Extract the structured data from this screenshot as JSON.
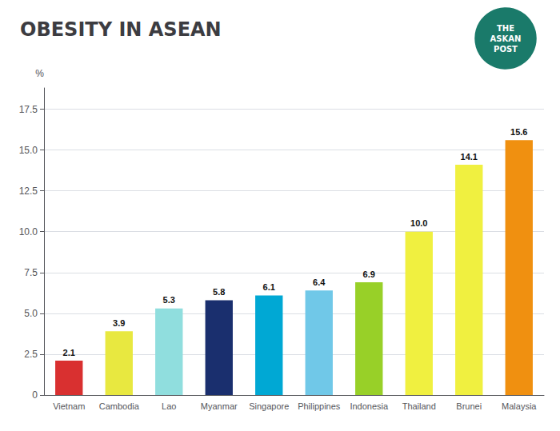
{
  "chart_data": {
    "type": "bar",
    "title": "OBESITY IN ASEAN",
    "categories": [
      "Vietnam",
      "Cambodia",
      "Lao",
      "Myanmar",
      "Singapore",
      "Philippines",
      "Indonesia",
      "Thailand",
      "Brunei",
      "Malaysia"
    ],
    "values": [
      2.1,
      3.9,
      5.3,
      5.8,
      6.1,
      6.4,
      6.9,
      10.0,
      14.1,
      15.6
    ],
    "value_labels": [
      "2.1",
      "3.9",
      "5.3",
      "5.8",
      "6.1",
      "6.4",
      "6.9",
      "10.0",
      "14.1",
      "15.6"
    ],
    "colors": [
      "#d93030",
      "#e8e840",
      "#90dede",
      "#1a2f6e",
      "#00a8d4",
      "#70c8e8",
      "#98d028",
      "#f0f040",
      "#f0f040",
      "#f09010"
    ],
    "ylabel": "%",
    "annotations": [
      "THE",
      "ASKAN",
      "POST"
    ],
    "ylim": [
      0,
      18.8
    ],
    "yticks": [
      0,
      2.5,
      {
        "value": 5.0,
        "label": "5.0"
      },
      7.5,
      {
        "value": 10.0,
        "label": "10.0"
      },
      12.5,
      {
        "value": 15.0,
        "label": "15.0"
      },
      17.5
    ],
    "grid": true,
    "data_labels": true
  }
}
